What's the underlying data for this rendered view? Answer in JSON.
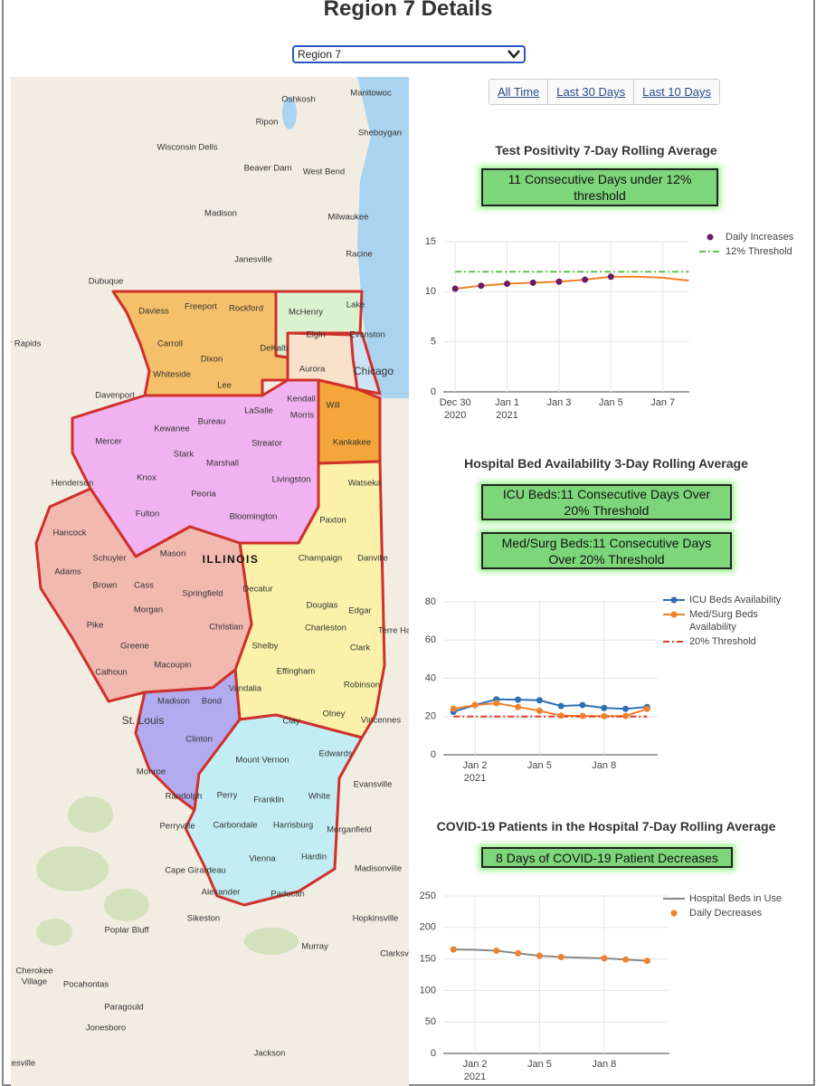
{
  "header": {
    "title": "Region 7 Details",
    "select": "Region 7"
  },
  "buttons": [
    "All Time",
    "Last 30 Days",
    "Last 10 Days"
  ],
  "map": {
    "labels": [
      "Oshkosh",
      "Manitowoc",
      "Ripon",
      "Sheboygan",
      "Wisconsin Dells",
      "Beaver Dam",
      "West Bend",
      "Madison",
      "Milwaukee",
      "Janesville",
      "Racine",
      "Dubuque",
      "Daviess",
      "Freeport",
      "Rockford",
      "McHenry",
      "Lake",
      "Carroll",
      "Dixon",
      "DeKalb",
      "Elgin",
      "Evanston",
      "ar Rapids",
      "Whiteside",
      "Lee",
      "Aurora",
      "Chicago",
      "Davenport",
      "Kendall",
      "Will",
      "LaSalle",
      "Morris",
      "Bureau",
      "Kewanee",
      "Mercer",
      "Stark",
      "Streator",
      "Kankakee",
      "Marshall",
      "Henderson",
      "Knox",
      "Livingston",
      "Watseka",
      "Peoria",
      "Fulton",
      "Bloomington",
      "Paxton",
      "Hancock",
      "Schuyler",
      "Mason",
      "ILLINOIS",
      "Champaign",
      "Danville",
      "Adams",
      "Brown",
      "Cass",
      "Springfield",
      "Decatur",
      "Douglas",
      "Edgar",
      "Morgan",
      "Christian",
      "Charleston",
      "Terre Haut",
      "Pike",
      "Shelby",
      "Clark",
      "Greene",
      "Macoupin",
      "Effingham",
      "Calhoun",
      "Vandalia",
      "Robinson",
      "Madison",
      "Bond",
      "Clay",
      "Olney",
      "Vincennes",
      "St. Louis",
      "Clinton",
      "Edwards",
      "Mount Vernon",
      "Monroe",
      "Evansville",
      "Perry",
      "Franklin",
      "White",
      "Randolph",
      "Perryville",
      "Carbondale",
      "Harrisburg",
      "Morganfield",
      "Vienna",
      "Hardin",
      "Madisonville",
      "Cape Girardeau",
      "Alexander",
      "Paducah",
      "Sikeston",
      "Hopkinsville",
      "Poplar Bluff",
      "Murray",
      "Clarksvi",
      "Cherokee",
      "Village",
      "Pocahontas",
      "Paragould",
      "Jonesboro",
      "atesville",
      "Jackson"
    ]
  },
  "chart_data": [
    {
      "type": "line",
      "title": "Test Positivity 7-Day Rolling Average",
      "badges": [
        "11 Consecutive Days under 12% threshold"
      ],
      "x": [
        "2020-12-30",
        "2020-12-31",
        "2021-01-01",
        "2021-01-02",
        "2021-01-03",
        "2021-01-04",
        "2021-01-05",
        "2021-01-06",
        "2021-01-07",
        "2021-01-08"
      ],
      "series": [
        {
          "mode": "lines",
          "color": "#f0812a",
          "values": [
            10.3,
            10.6,
            10.8,
            10.9,
            11.0,
            11.2,
            11.5,
            11.5,
            11.4,
            11.1
          ]
        },
        {
          "name": "Daily Increases",
          "mode": "markers",
          "color": "#6a1b6a",
          "values": [
            10.3,
            10.6,
            10.8,
            10.9,
            11.0,
            11.2,
            11.5,
            null,
            null,
            null
          ]
        },
        {
          "name": "12% Threshold",
          "mode": "lines",
          "dash": true,
          "color": "#5cc14a",
          "values": [
            12,
            12,
            12,
            12,
            12,
            12,
            12,
            12,
            12,
            12
          ]
        }
      ],
      "xlim": [
        "2020-12-29T13:00",
        "2021-01-08T00:30"
      ],
      "xticks": [
        {
          "value": "2020-12-30",
          "label": "Dec 30\n2020"
        },
        {
          "value": "2021-01-01",
          "label": "Jan 1\n2021"
        },
        {
          "value": "2021-01-03",
          "label": "Jan 3"
        },
        {
          "value": "2021-01-05",
          "label": "Jan 5"
        },
        {
          "value": "2021-01-07",
          "label": "Jan 7"
        }
      ],
      "ylim": [
        0,
        15
      ],
      "yticks": [
        0,
        5,
        10,
        15
      ],
      "grid": true
    },
    {
      "type": "line",
      "title": "Hospital Bed Availability 3-Day Rolling Average",
      "badges": [
        "ICU Beds:11 Consecutive Days Over 20% Threshold",
        "Med/Surg Beds:11 Consecutive Days Over 20% Threshold"
      ],
      "x": [
        "2021-01-01",
        "2021-01-02",
        "2021-01-03",
        "2021-01-04",
        "2021-01-05",
        "2021-01-06",
        "2021-01-07",
        "2021-01-08",
        "2021-01-09",
        "2021-01-10"
      ],
      "series": [
        {
          "name": "ICU Beds Availability",
          "mode": "lines+markers",
          "color": "#2f6fb5",
          "values": [
            22.5,
            26,
            29,
            28.8,
            28.5,
            25.5,
            26,
            24.5,
            24,
            25
          ]
        },
        {
          "name": "Med/Surg Beds Availability",
          "mode": "lines+markers",
          "color": "#f0812a",
          "values": [
            24,
            26,
            27,
            25,
            23,
            20.5,
            20.3,
            20.2,
            20.3,
            24
          ]
        },
        {
          "name": "20% Threshold",
          "mode": "lines",
          "dash": true,
          "color": "#e03a2a",
          "values": [
            20,
            20,
            20,
            20,
            20,
            20,
            20,
            20,
            20,
            20
          ]
        }
      ],
      "xlim": [
        "2020-12-31T12:40",
        "2021-01-10T11:45"
      ],
      "xticks": [
        {
          "value": "2021-01-02",
          "label": "Jan 2\n2021"
        },
        {
          "value": "2021-01-05",
          "label": "Jan 5"
        },
        {
          "value": "2021-01-08",
          "label": "Jan 8"
        }
      ],
      "ylim": [
        0,
        80
      ],
      "yticks": [
        0,
        20,
        40,
        60,
        80
      ],
      "grid": true
    },
    {
      "type": "line",
      "title": "COVID-19 Patients in the Hospital 7-Day Rolling Average",
      "badges": [
        "8 Days of COVID-19 Patient Decreases"
      ],
      "x": [
        "2021-01-01",
        "2021-01-02",
        "2021-01-03",
        "2021-01-04",
        "2021-01-05",
        "2021-01-06",
        "2021-01-07",
        "2021-01-08",
        "2021-01-09",
        "2021-01-10"
      ],
      "series": [
        {
          "name": "Hospital Beds in Use",
          "mode": "lines",
          "color": "#888888",
          "values": [
            165,
            164.5,
            163,
            159,
            155,
            153,
            152,
            151,
            149,
            147
          ]
        },
        {
          "name": "Daily Decreases",
          "mode": "markers",
          "color": "#f0812a",
          "values": [
            165,
            null,
            163,
            159,
            155,
            153,
            null,
            151,
            149,
            147
          ]
        }
      ],
      "xlim": [
        "2020-12-31T12:40",
        "2021-01-11T00:45"
      ],
      "xticks": [
        {
          "value": "2021-01-02",
          "label": "Jan 2\n2021"
        },
        {
          "value": "2021-01-05",
          "label": "Jan 5"
        },
        {
          "value": "2021-01-08",
          "label": "Jan 8"
        }
      ],
      "ylim": [
        0,
        250
      ],
      "yticks": [
        0,
        50,
        100,
        150,
        200,
        250
      ],
      "grid": true
    }
  ]
}
